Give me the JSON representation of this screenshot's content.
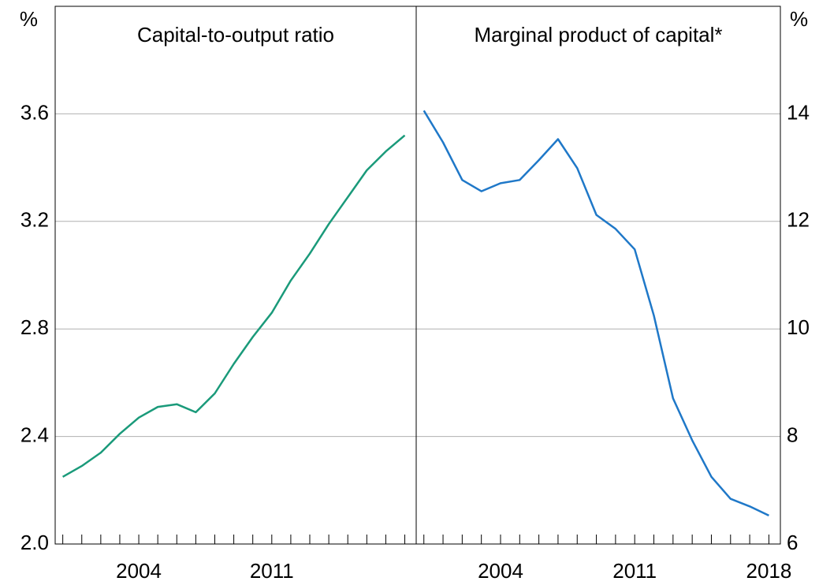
{
  "chart_data": [
    {
      "type": "line",
      "title": "Capital-to-output ratio",
      "ylabel": "%",
      "x": [
        2000,
        2001,
        2002,
        2003,
        2004,
        2005,
        2006,
        2007,
        2008,
        2009,
        2010,
        2011,
        2012,
        2013,
        2014,
        2015,
        2016,
        2017,
        2018
      ],
      "values": [
        2.25,
        2.29,
        2.34,
        2.41,
        2.47,
        2.51,
        2.52,
        2.49,
        2.56,
        2.67,
        2.77,
        2.86,
        2.98,
        3.08,
        3.19,
        3.29,
        3.39,
        3.46,
        3.52
      ],
      "color": "#1a9a7a",
      "xlim": [
        1999.6,
        2018.6
      ],
      "xticks": [
        2004,
        2011
      ],
      "ylim": [
        2,
        4
      ],
      "yticks": [
        {
          "value": 2,
          "label": "2.0"
        },
        2.4,
        2.8,
        3.2,
        3.6
      ],
      "grid": true,
      "yaxis_side": "left"
    },
    {
      "type": "line",
      "title": "Marginal product of capital*",
      "ylabel": "%",
      "x": [
        2000,
        2001,
        2002,
        2003,
        2004,
        2005,
        2006,
        2007,
        2008,
        2009,
        2010,
        2011,
        2012,
        2013,
        2014,
        2015,
        2016,
        2017,
        2018
      ],
      "values": [
        14.06,
        13.47,
        12.77,
        12.56,
        12.71,
        12.77,
        13.14,
        13.53,
        12.99,
        12.12,
        11.86,
        11.48,
        10.25,
        8.71,
        7.93,
        7.25,
        6.84,
        6.7,
        6.53
      ],
      "color": "#1f78c8",
      "xlim": [
        1999.6,
        2018.6
      ],
      "xticks": [
        2004,
        2011,
        2018
      ],
      "ylim": [
        6,
        16
      ],
      "yticks": [
        6,
        8,
        10,
        12,
        14
      ],
      "grid": true,
      "yaxis_side": "right"
    }
  ]
}
